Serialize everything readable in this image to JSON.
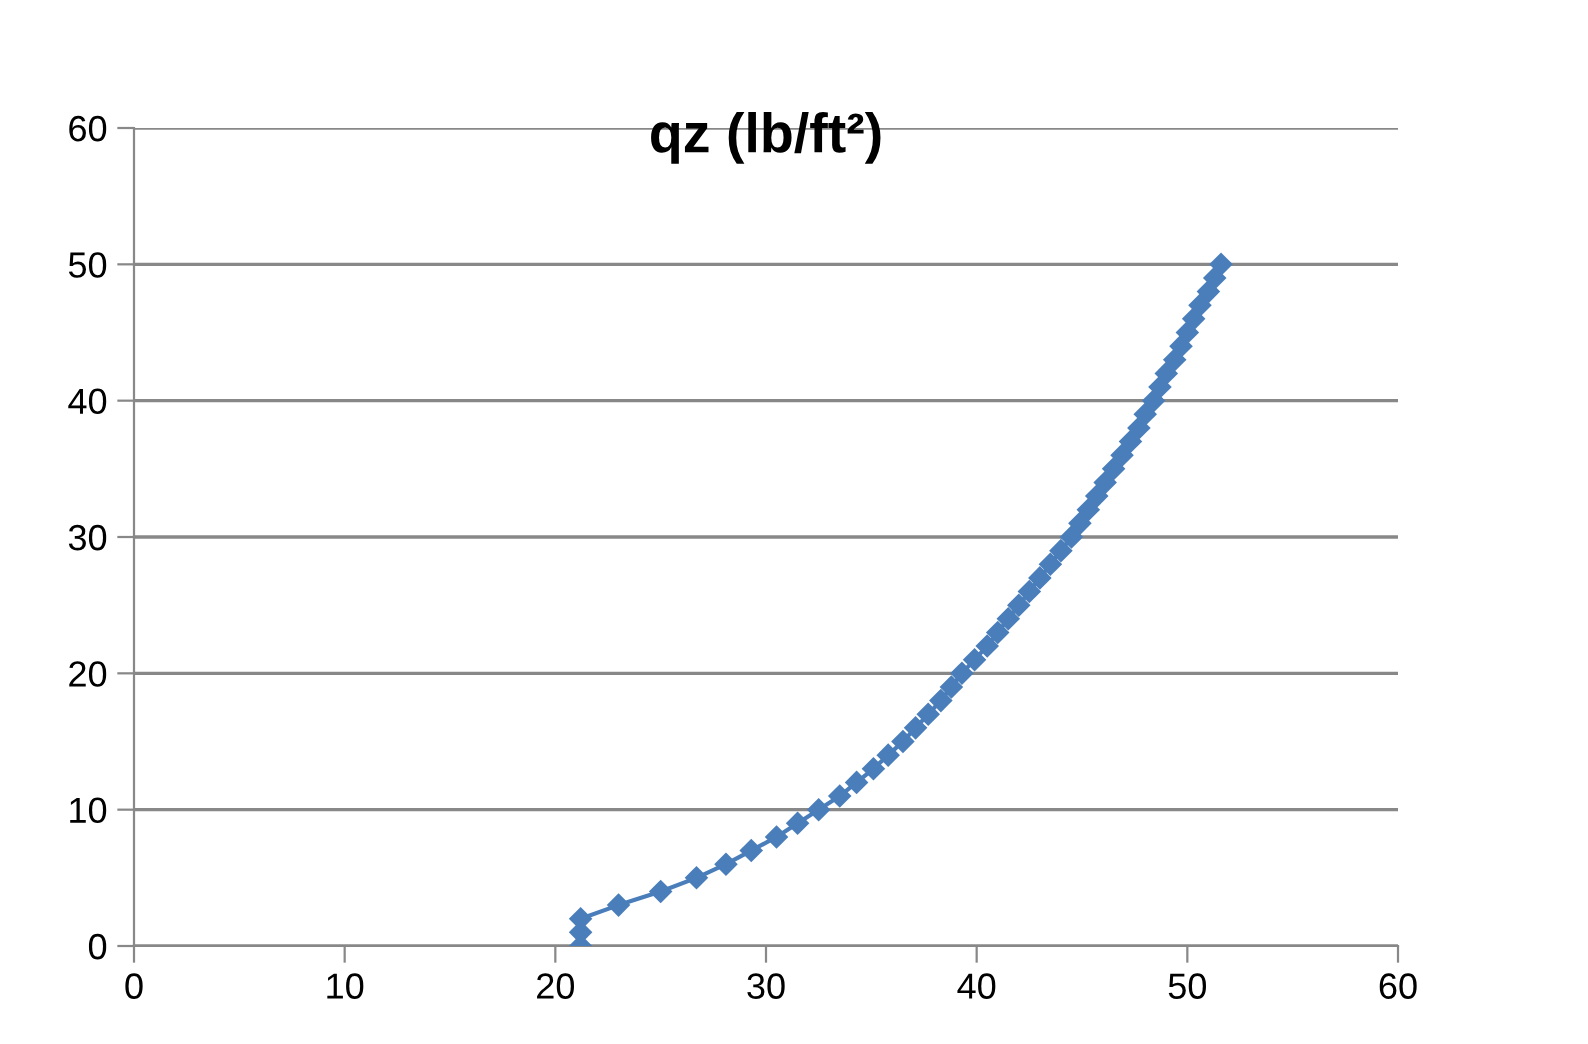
{
  "chart_data": {
    "type": "line",
    "title": "qz (lb/ft²)",
    "x": [
      21.2,
      21.2,
      21.2,
      23.0,
      25.0,
      26.7,
      28.1,
      29.3,
      30.5,
      31.5,
      32.5,
      33.5,
      34.3,
      35.1,
      35.8,
      36.5,
      37.1,
      37.7,
      38.3,
      38.8,
      39.3,
      39.9,
      40.5,
      41.0,
      41.5,
      42.0,
      42.5,
      43.0,
      43.5,
      44.0,
      44.5,
      44.9,
      45.3,
      45.7,
      46.1,
      46.5,
      46.9,
      47.3,
      47.7,
      48.0,
      48.4,
      48.7,
      49.0,
      49.4,
      49.7,
      50.0,
      50.3,
      50.6,
      51.0,
      51.3,
      51.6
    ],
    "series": [
      {
        "color": "#4a7ebb",
        "values": [
          0,
          1,
          2,
          3,
          4,
          5,
          6,
          7,
          8,
          9,
          10,
          11,
          12,
          13,
          14,
          15,
          16,
          17,
          18,
          19,
          20,
          21,
          22,
          23,
          24,
          25,
          26,
          27,
          28,
          29,
          30,
          31,
          32,
          33,
          34,
          35,
          36,
          37,
          38,
          39,
          40,
          41,
          42,
          43,
          44,
          45,
          46,
          47,
          48,
          49,
          50
        ]
      }
    ],
    "xlim": [
      0,
      60
    ],
    "xticks": [
      0,
      10,
      20,
      30,
      40,
      50,
      60
    ],
    "ylim": [
      0,
      60
    ],
    "yticks": [
      0,
      10,
      20,
      30,
      40,
      50,
      60
    ],
    "grid": "y",
    "marker": "diamond",
    "line_style": "solid"
  }
}
